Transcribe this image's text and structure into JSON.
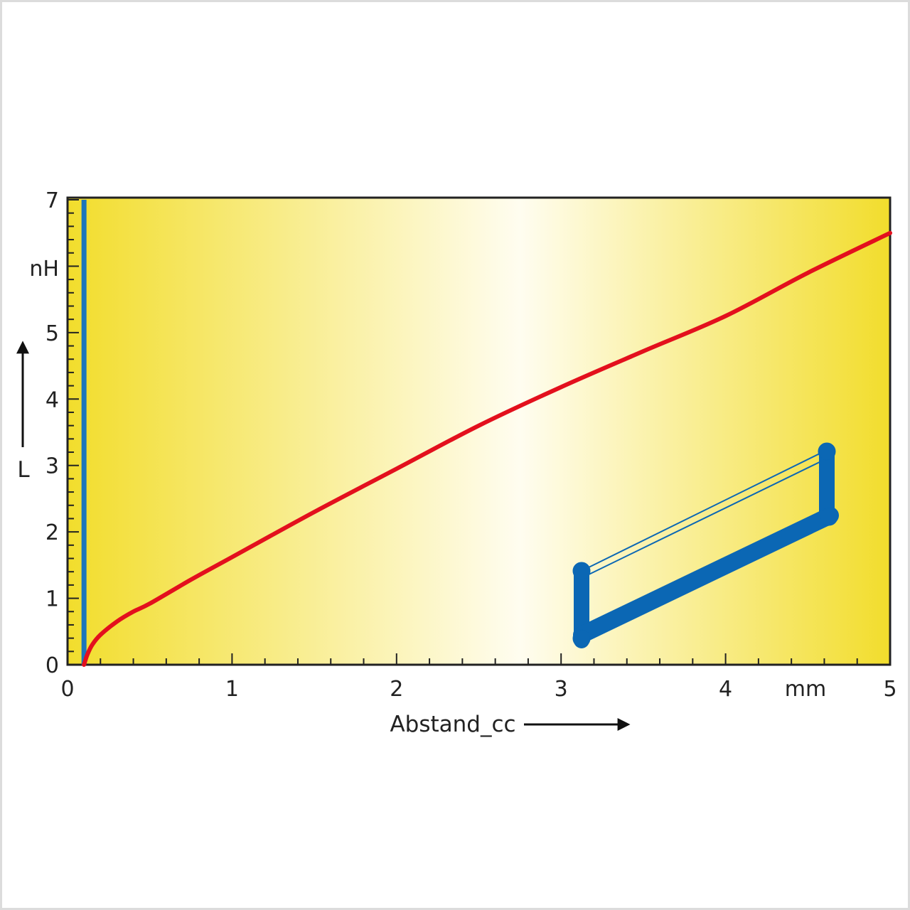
{
  "chart_data": {
    "type": "line",
    "xlabel": "Abstand_cc",
    "xunit": "mm",
    "ylabel": "L",
    "yunit": "nH",
    "xlim": [
      0,
      5
    ],
    "ylim": [
      0,
      7
    ],
    "x_ticks": [
      "0",
      "1",
      "2",
      "3",
      "4",
      "5"
    ],
    "y_ticks": [
      "0",
      "1",
      "2",
      "3",
      "4",
      "5",
      "7"
    ],
    "series": [
      {
        "color": "#e3101d",
        "x": [
          0.1,
          0.12,
          0.15,
          0.2,
          0.3,
          0.4,
          0.5,
          0.75,
          1.0,
          1.5,
          2.0,
          2.5,
          3.0,
          3.5,
          4.0,
          4.5,
          5.0
        ],
        "y": [
          0.0,
          0.15,
          0.3,
          0.45,
          0.65,
          0.8,
          0.92,
          1.28,
          1.62,
          2.3,
          2.95,
          3.6,
          4.18,
          4.72,
          5.25,
          5.9,
          6.5
        ]
      }
    ],
    "vertical_line": {
      "x": 0.1,
      "color": "#1b75bb"
    },
    "background_colors": {
      "edge": "#f2dd2c",
      "center": "#fffdf0"
    },
    "inset_icon": "rectangular-conductor-loop-icon",
    "inset_color": "#0b67b4"
  }
}
